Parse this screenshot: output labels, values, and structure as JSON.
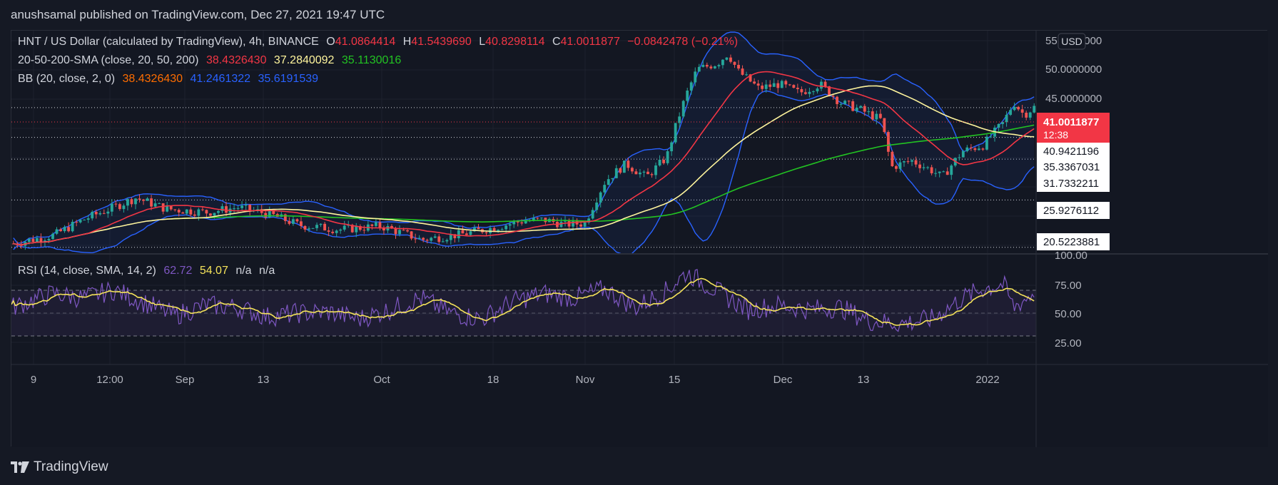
{
  "header": {
    "published": "anushsamal published on TradingView.com, Dec 27, 2021 19:47 UTC"
  },
  "legend": {
    "main": {
      "title": "HNT / US Dollar (calculated by TradingView), 4h, BINANCE",
      "o_label": "O",
      "o_value": "41.0864414",
      "h_label": "H",
      "h_value": "41.5439690",
      "l_label": "L",
      "l_value": "40.8298114",
      "c_label": "C",
      "c_value": "41.0011877",
      "change": "−0.0842478 (−0.21%)"
    },
    "sma": {
      "label": "20-50-200-SMA (close, 20, 50, 200)",
      "v1": "38.4326430",
      "v2": "37.2840092",
      "v3": "35.1130016"
    },
    "bb": {
      "label": "BB (20, close, 2, 0)",
      "v1": "38.4326430",
      "v2": "41.2461322",
      "v3": "35.6191539"
    },
    "rsi": {
      "label": "RSI (14, close, SMA, 14, 2)",
      "v1": "62.72",
      "v2": "54.07",
      "v3": "n/a",
      "v4": "n/a"
    }
  },
  "price_axis": {
    "currency": "USD",
    "ticks": [
      "55.0000000",
      "50.0000000",
      "45.0000000"
    ],
    "current_price": "41.0011877",
    "countdown": "12:38",
    "level_labels": [
      "40.9421196",
      "35.3367031",
      "31.7332211",
      "25.9276112",
      "20.5223881"
    ]
  },
  "rsi_axis": {
    "ticks": [
      "100.00",
      "75.00",
      "50.00",
      "25.00"
    ]
  },
  "time_axis": {
    "ticks": [
      "9",
      "12:00",
      "Sep",
      "13",
      "Oct",
      "18",
      "Nov",
      "15",
      "Dec",
      "13",
      "2022"
    ]
  },
  "footer": {
    "brand": "TradingView"
  },
  "colors": {
    "background": "#131722",
    "candle_up": "#26a69a",
    "candle_down": "#ef5350",
    "sma20": "#f23645",
    "sma50": "#fff59d",
    "sma200": "#22c322",
    "bb_band": "#2962ff",
    "rsi_line": "#7e57c2",
    "rsi_ma": "#f5e35a",
    "price_label_bg": "#f23645"
  },
  "chart_data": {
    "type": "candlestick",
    "symbol": "HNT / US Dollar",
    "interval": "4h",
    "exchange": "BINANCE",
    "y_range": [
      20.5,
      57
    ],
    "y_scale": "log",
    "x_ticks": [
      "9",
      "12:00",
      "Sep",
      "13",
      "Oct",
      "18",
      "Nov",
      "15",
      "Dec",
      "13",
      "2022"
    ],
    "price_path": [
      {
        "t": 0.0,
        "p": 20.9
      },
      {
        "t": 0.04,
        "p": 21.8
      },
      {
        "t": 0.07,
        "p": 23.6
      },
      {
        "t": 0.1,
        "p": 25.1
      },
      {
        "t": 0.12,
        "p": 26.2
      },
      {
        "t": 0.15,
        "p": 24.8
      },
      {
        "t": 0.19,
        "p": 24.4
      },
      {
        "t": 0.22,
        "p": 25.0
      },
      {
        "t": 0.25,
        "p": 24.2
      },
      {
        "t": 0.28,
        "p": 22.9
      },
      {
        "t": 0.32,
        "p": 22.4
      },
      {
        "t": 0.36,
        "p": 22.8
      },
      {
        "t": 0.4,
        "p": 21.3
      },
      {
        "t": 0.44,
        "p": 21.9
      },
      {
        "t": 0.47,
        "p": 22.6
      },
      {
        "t": 0.5,
        "p": 23.4
      },
      {
        "t": 0.52,
        "p": 23.5
      },
      {
        "t": 0.54,
        "p": 23.0
      },
      {
        "t": 0.56,
        "p": 23.1
      },
      {
        "t": 0.58,
        "p": 28.5
      },
      {
        "t": 0.6,
        "p": 31.0
      },
      {
        "t": 0.62,
        "p": 29.0
      },
      {
        "t": 0.64,
        "p": 32.0
      },
      {
        "t": 0.66,
        "p": 44.0
      },
      {
        "t": 0.67,
        "p": 49.5
      },
      {
        "t": 0.69,
        "p": 51.0
      },
      {
        "t": 0.7,
        "p": 53.5
      },
      {
        "t": 0.71,
        "p": 49.0
      },
      {
        "t": 0.73,
        "p": 45.0
      },
      {
        "t": 0.75,
        "p": 46.0
      },
      {
        "t": 0.77,
        "p": 44.0
      },
      {
        "t": 0.79,
        "p": 46.0
      },
      {
        "t": 0.81,
        "p": 42.0
      },
      {
        "t": 0.83,
        "p": 40.5
      },
      {
        "t": 0.85,
        "p": 38.5
      },
      {
        "t": 0.86,
        "p": 30.5
      },
      {
        "t": 0.88,
        "p": 31.5
      },
      {
        "t": 0.9,
        "p": 30.0
      },
      {
        "t": 0.91,
        "p": 29.0
      },
      {
        "t": 0.93,
        "p": 33.0
      },
      {
        "t": 0.95,
        "p": 34.0
      },
      {
        "t": 0.97,
        "p": 38.0
      },
      {
        "t": 0.98,
        "p": 42.0
      },
      {
        "t": 0.99,
        "p": 39.5
      },
      {
        "t": 1.0,
        "p": 41.0
      }
    ],
    "rsi_path": [
      {
        "t": 0.0,
        "v": 50
      },
      {
        "t": 0.04,
        "v": 62
      },
      {
        "t": 0.07,
        "v": 58
      },
      {
        "t": 0.1,
        "v": 65
      },
      {
        "t": 0.13,
        "v": 54
      },
      {
        "t": 0.16,
        "v": 43
      },
      {
        "t": 0.19,
        "v": 52
      },
      {
        "t": 0.22,
        "v": 50
      },
      {
        "t": 0.25,
        "v": 42
      },
      {
        "t": 0.28,
        "v": 45
      },
      {
        "t": 0.31,
        "v": 46
      },
      {
        "t": 0.34,
        "v": 40
      },
      {
        "t": 0.37,
        "v": 48
      },
      {
        "t": 0.4,
        "v": 58
      },
      {
        "t": 0.43,
        "v": 45
      },
      {
        "t": 0.46,
        "v": 40
      },
      {
        "t": 0.49,
        "v": 55
      },
      {
        "t": 0.52,
        "v": 62
      },
      {
        "t": 0.55,
        "v": 58
      },
      {
        "t": 0.58,
        "v": 66
      },
      {
        "t": 0.61,
        "v": 50
      },
      {
        "t": 0.64,
        "v": 64
      },
      {
        "t": 0.66,
        "v": 80
      },
      {
        "t": 0.69,
        "v": 64
      },
      {
        "t": 0.72,
        "v": 48
      },
      {
        "t": 0.75,
        "v": 52
      },
      {
        "t": 0.78,
        "v": 48
      },
      {
        "t": 0.81,
        "v": 50
      },
      {
        "t": 0.84,
        "v": 38
      },
      {
        "t": 0.87,
        "v": 36
      },
      {
        "t": 0.9,
        "v": 40
      },
      {
        "t": 0.93,
        "v": 58
      },
      {
        "t": 0.95,
        "v": 66
      },
      {
        "t": 0.97,
        "v": 70
      },
      {
        "t": 0.98,
        "v": 50
      },
      {
        "t": 1.0,
        "v": 62.72
      }
    ]
  }
}
